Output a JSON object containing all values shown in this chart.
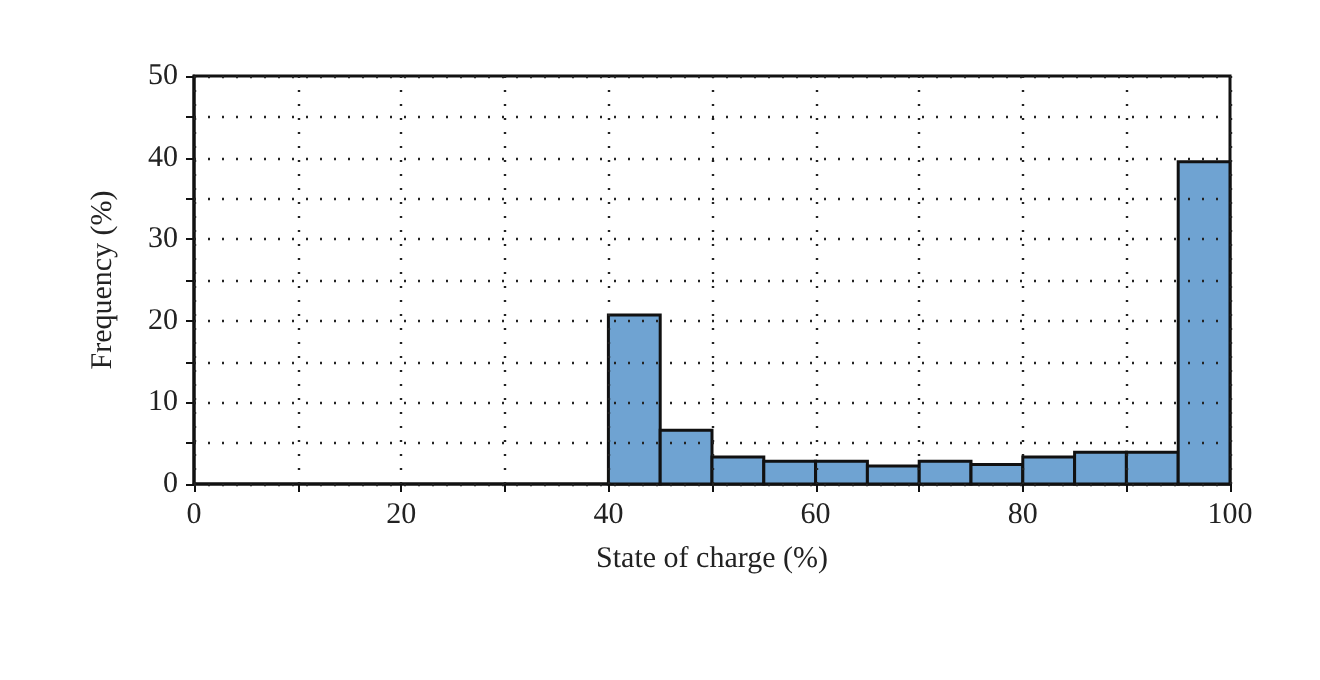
{
  "chart_data": {
    "type": "histogram",
    "xlabel": "State of charge (%)",
    "ylabel": "Frequency (%)",
    "bins": [
      40,
      45,
      50,
      55,
      60,
      65,
      70,
      75,
      80,
      85,
      90,
      95,
      100
    ],
    "values": [
      20.7,
      6.6,
      3.3,
      2.8,
      2.8,
      2.2,
      2.8,
      2.4,
      3.3,
      3.9,
      3.9,
      39.5
    ],
    "color": "#6fa3d2",
    "xlim": [
      0,
      100
    ],
    "xticks": [
      0,
      {
        "value": 10,
        "label": null
      },
      20,
      {
        "value": 30,
        "label": null
      },
      40,
      {
        "value": 50,
        "label": null
      },
      60,
      {
        "value": 70,
        "label": null
      },
      80,
      {
        "value": 90,
        "label": null
      },
      100
    ],
    "ylim": [
      0,
      50
    ],
    "yticks": [
      0,
      {
        "value": 5,
        "label": null
      },
      10,
      {
        "value": 15,
        "label": null
      },
      20,
      {
        "value": 25,
        "label": null
      },
      30,
      {
        "value": 35,
        "label": null
      },
      40,
      {
        "value": 45,
        "label": null
      },
      50
    ],
    "grid": true
  }
}
